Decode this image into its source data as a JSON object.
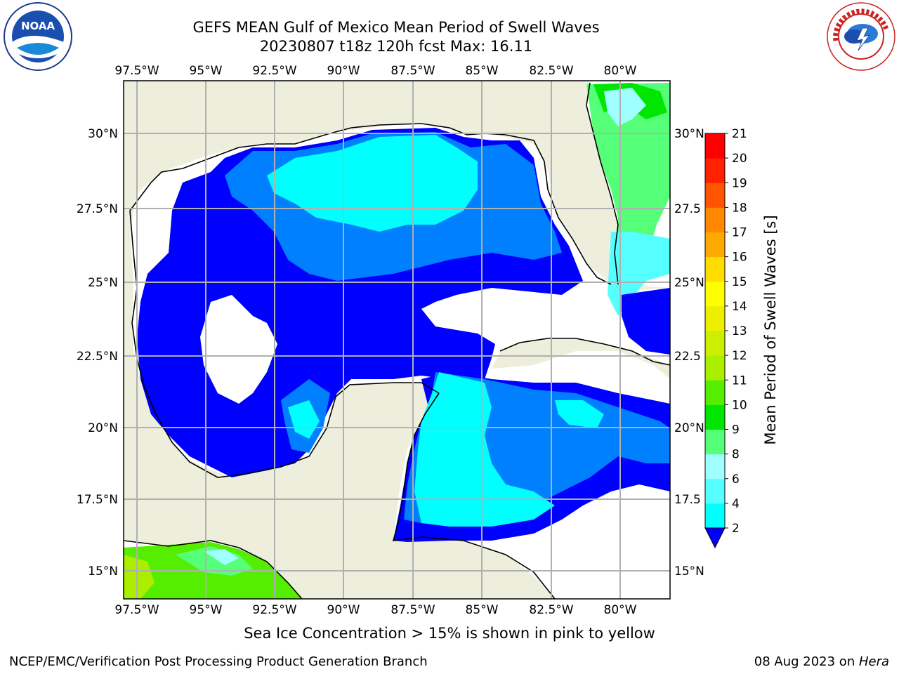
{
  "header": {
    "title_line1": "GEFS MEAN Gulf of Mexico Mean Period of Swell Waves",
    "title_line2": "20230807 t18z 120h fcst   Max: 16.11"
  },
  "map": {
    "lon_labels": [
      "97.5°W",
      "95°W",
      "92.5°W",
      "90°W",
      "87.5°W",
      "85°W",
      "82.5°W",
      "80°W"
    ],
    "lat_labels": [
      "30°N",
      "27.5°N",
      "25°N",
      "22.5°N",
      "20°N",
      "17.5°N",
      "15°N"
    ],
    "lat_labels_right": [
      "30°N",
      "27.5",
      "25°N",
      "22.5",
      "20°N",
      "17.5",
      "15°N"
    ],
    "colors": {
      "land": "#eeeedd",
      "deep": "#0000ff",
      "mid": "#0080ff",
      "cyan": "#00ffff",
      "green": "#55ff55",
      "lime": "#00e600"
    }
  },
  "colorbar": {
    "label": "Mean Period of Swell Waves [s]",
    "ticks": [
      "2",
      "4",
      "6",
      "8",
      "9",
      "10",
      "11",
      "12",
      "13",
      "14",
      "15",
      "16",
      "17",
      "18",
      "19",
      "20",
      "21"
    ],
    "colors": [
      "#0080ff",
      "#00ffff",
      "#55ffff",
      "#a0ffff",
      "#55ff77",
      "#00e600",
      "#55ee00",
      "#aaee00",
      "#ccee00",
      "#eeee00",
      "#ffff00",
      "#ffdd00",
      "#ffaa00",
      "#ff8800",
      "#ff5500",
      "#ff2200",
      "#ff0000"
    ]
  },
  "annotation": "Sea Ice Concentration > 15% is shown in pink to yellow",
  "footer": {
    "credit": "NCEP/EMC/Verification Post Processing Product Generation Branch",
    "date": "08 Aug 2023 on ",
    "host": "Hera"
  },
  "logos": {
    "noaa_text": "NOAA",
    "nws_text": "NATIONAL WEATHER SERVICE"
  }
}
